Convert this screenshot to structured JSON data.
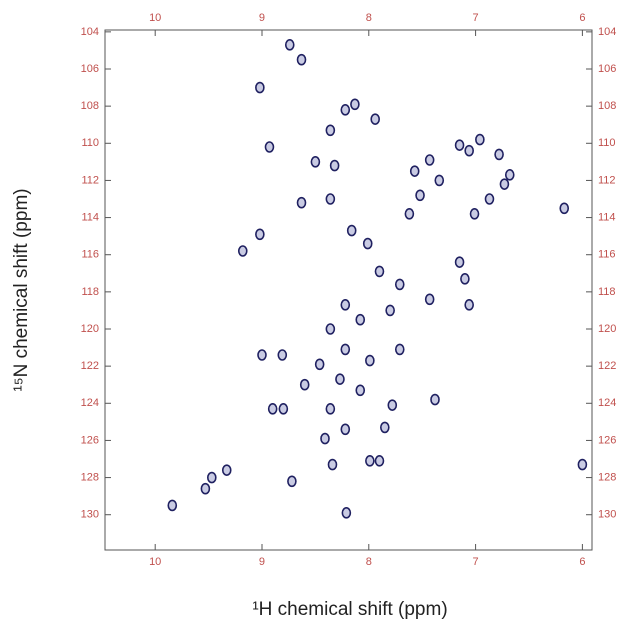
{
  "chart_data": {
    "type": "scatter",
    "xlabel": "¹H chemical shift (ppm)",
    "ylabel": "¹⁵N chemical shift (ppm)",
    "color": "#1f2060",
    "xlim": [
      10.47,
      5.91
    ],
    "ylim": [
      131.9,
      103.9
    ],
    "xticks": [
      10,
      9,
      8,
      7,
      6
    ],
    "yticks": [
      104,
      106,
      108,
      110,
      112,
      114,
      116,
      118,
      120,
      122,
      124,
      126,
      128,
      130
    ],
    "x": [
      8.22,
      8.13,
      8.36,
      7.94,
      8.93,
      8.74,
      8.63,
      9.02,
      8.5,
      8.32,
      8.63,
      8.36,
      8.16,
      8.01,
      9.18,
      9.02,
      7.9,
      7.43,
      7.57,
      7.52,
      7.62,
      7.34,
      7.15,
      7.06,
      6.96,
      6.78,
      6.73,
      6.87,
      7.01,
      6.68,
      6.17,
      8.22,
      8.36,
      8.08,
      7.8,
      7.71,
      8.22,
      7.99,
      7.71,
      8.46,
      8.27,
      8.08,
      8.36,
      8.22,
      8.41,
      7.78,
      7.85,
      8.6,
      8.81,
      9.0,
      8.8,
      8.9,
      7.1,
      7.06,
      7.15,
      7.43,
      7.38,
      7.99,
      7.9,
      8.34,
      8.72,
      9.47,
      9.33,
      9.84,
      8.21,
      9.53,
      6.0
    ],
    "values": [
      108.2,
      107.9,
      109.3,
      108.7,
      110.2,
      104.7,
      105.5,
      107.0,
      111.0,
      111.2,
      113.2,
      113.0,
      114.7,
      115.4,
      115.8,
      114.9,
      116.9,
      110.9,
      111.5,
      112.8,
      113.8,
      112.0,
      110.1,
      110.4,
      109.8,
      110.6,
      112.2,
      113.0,
      113.8,
      111.7,
      113.5,
      118.7,
      120.0,
      119.5,
      119.0,
      117.6,
      121.1,
      121.7,
      121.1,
      121.9,
      122.7,
      123.3,
      124.3,
      125.4,
      125.9,
      124.1,
      125.3,
      123.0,
      121.4,
      121.4,
      124.3,
      124.3,
      117.3,
      118.7,
      116.4,
      118.4,
      123.8,
      127.1,
      127.1,
      127.3,
      128.2,
      128.0,
      127.6,
      129.5,
      129.9,
      128.6,
      127.3
    ]
  }
}
